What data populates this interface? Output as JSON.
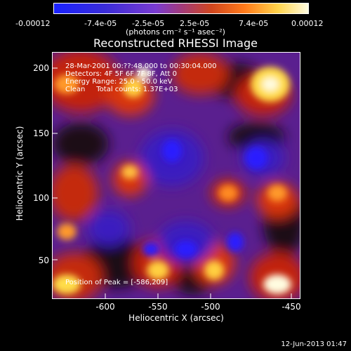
{
  "colorbar": {
    "ticks": [
      "-0.00012",
      "-7.4e-05",
      "-2.5e-05",
      "2.5e-05",
      "7.4e-05",
      "0.00012"
    ],
    "units": "(photons cm⁻² s⁻¹ asec⁻²)"
  },
  "title": "Reconstructed RHESSI Image",
  "info": {
    "line1": "28-Mar-2001 00:??:48.000 to 00:30:04.000",
    "line2": "Detectors: 4F 5F 6F 7F 8F, Att 0",
    "line3": "Energy Range: 25.0 - 50.0 keV",
    "line4": "Clean     Total counts: 1.37E+03",
    "peak": "Position of Peak = [-586,209]"
  },
  "axes": {
    "xlabel": "Heliocentric X (arcsec)",
    "ylabel": "Heliocentric Y (arcsec)",
    "xticks": [
      "-600",
      "-550",
      "-500",
      "-450"
    ],
    "yticks": [
      "50",
      "100",
      "150",
      "200"
    ]
  },
  "timestamp": "12-Jun-2013 01:47",
  "colors": {
    "low": "#1a22ff",
    "mid": "#7a3bd1",
    "high": "#fffce0",
    "frame": "#ffffff"
  }
}
